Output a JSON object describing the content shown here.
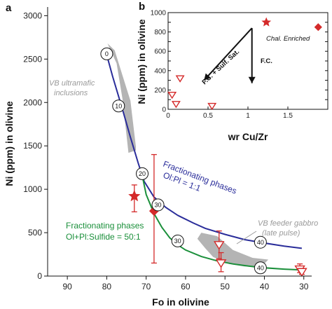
{
  "chart_data": [
    {
      "panel_label": "a",
      "type": "line",
      "xlabel": "Fo in olivine",
      "ylabel": "Ni (ppm) in olivine",
      "xlim": [
        95,
        28
      ],
      "ylim": [
        0,
        3100
      ],
      "x_ticks": [
        "90",
        "80",
        "70",
        "60",
        "50",
        "40",
        "30"
      ],
      "x_tick_values": [
        90,
        80,
        70,
        60,
        50,
        40,
        30
      ],
      "y_ticks": [
        "0",
        "500",
        "1000",
        "1500",
        "2000",
        "2500",
        "3000"
      ],
      "y_tick_values": [
        0,
        500,
        1000,
        1500,
        2000,
        2500,
        3000
      ],
      "series": [
        {
          "name": "Fractionating phases Ol:Pl = 1:1",
          "color": "#2a2d9a",
          "x": [
            80.2,
            78.5,
            76,
            74,
            72,
            70.5,
            68,
            65,
            62,
            58,
            55,
            50,
            45,
            40,
            35,
            30.5
          ],
          "y": [
            2580,
            2300,
            1920,
            1600,
            1300,
            1090,
            910,
            790,
            700,
            610,
            550,
            480,
            420,
            380,
            345,
            320
          ]
        },
        {
          "name": "Fractionating phases Ol+Pl:Sulfide = 50:1",
          "color": "#1a8f3a",
          "x": [
            71,
            70,
            68,
            66,
            64,
            62,
            60,
            56,
            52,
            48,
            44,
            40,
            35,
            30.5
          ],
          "y": [
            1160,
            940,
            720,
            560,
            440,
            360,
            300,
            225,
            175,
            140,
            115,
            95,
            80,
            70
          ]
        }
      ],
      "curve_markers": [
        {
          "label": "0",
          "x": 80,
          "y": 2560
        },
        {
          "label": "10",
          "x": 77,
          "y": 1960
        },
        {
          "label": "20",
          "x": 71,
          "y": 1180
        },
        {
          "label": "30",
          "x": 67,
          "y": 820
        },
        {
          "label": "30",
          "x": 62,
          "y": 405
        },
        {
          "label": "40",
          "x": 41,
          "y": 390
        },
        {
          "label": "40",
          "x": 41,
          "y": 95
        }
      ],
      "points": [
        {
          "marker": "star",
          "color": "#d42a2a",
          "x": 73,
          "y": 920,
          "yerr": [
            180,
            130
          ]
        },
        {
          "marker": "diamond",
          "color": "#d42a2a",
          "x": 68,
          "y": 750,
          "yerr": [
            600,
            650
          ]
        },
        {
          "marker": "triangle-down",
          "color": "#d42a2a",
          "x": 51.5,
          "y": 360,
          "yerr": [
            160,
            160
          ]
        },
        {
          "marker": "triangle-down",
          "color": "#d42a2a",
          "x": 51,
          "y": 150,
          "yerr": [
            100,
            120
          ]
        },
        {
          "marker": "triangle-down",
          "color": "#d42a2a",
          "x": 31,
          "y": 80,
          "yerr": [
            40,
            60
          ]
        },
        {
          "marker": "triangle-down",
          "color": "#d42a2a",
          "x": 30.5,
          "y": 50,
          "yerr": [
            30,
            30
          ]
        }
      ],
      "regions": [
        {
          "label": "VB ultramafic inclusions",
          "color": "#b4b4b4",
          "polygon": [
            [
              79.8,
              2680
            ],
            [
              78,
              2600
            ],
            [
              74,
              2020
            ],
            [
              72.5,
              1450
            ],
            [
              74.5,
              1420
            ],
            [
              76,
              2040
            ],
            [
              77.5,
              2450
            ],
            [
              79.2,
              2620
            ]
          ]
        },
        {
          "label": "VB feeder gabbro (late pulse)",
          "color": "#b4b4b4",
          "polygon": [
            [
              56,
              500
            ],
            [
              52,
              460
            ],
            [
              48,
              300
            ],
            [
              43,
              210
            ],
            [
              39,
              190
            ],
            [
              40.5,
              120
            ],
            [
              45,
              110
            ],
            [
              49,
              140
            ],
            [
              53,
              220
            ],
            [
              55,
              320
            ],
            [
              57,
              430
            ]
          ]
        }
      ],
      "annotations": {
        "ultramafic": [
          "VB ultramafic",
          "inclusions"
        ],
        "blue_curve": [
          "Fractionating phases",
          "Ol:Pl = 1:1"
        ],
        "green_curve": [
          "Fractionating phases",
          "Ol+Pl:Sulfide = 50:1"
        ],
        "gabbro": [
          "VB feeder gabbro",
          "(late pulse)"
        ]
      }
    },
    {
      "panel_label": "b",
      "type": "scatter",
      "xlabel": "wr Cu/Zr",
      "ylabel": "Ni (ppm) in olivine",
      "xlim": [
        0,
        2
      ],
      "ylim": [
        0,
        1000
      ],
      "x_ticks": [
        "0",
        "0.5",
        "1",
        "1.5"
      ],
      "x_tick_values": [
        0,
        0.5,
        1,
        1.5
      ],
      "y_ticks": [
        "0",
        "100",
        "200",
        "300",
        "400",
        "500",
        "600",
        "700",
        "800",
        "900",
        "1000"
      ],
      "y_tick_values": [
        0,
        100,
        200,
        300,
        400,
        500,
        600,
        700,
        800,
        900,
        1000
      ],
      "points": [
        {
          "marker": "star",
          "color": "#d42a2a",
          "x": 1.23,
          "y": 900
        },
        {
          "marker": "diamond",
          "color": "#d42a2a",
          "x": 1.88,
          "y": 850
        },
        {
          "marker": "triangle-down",
          "color": "#d42a2a",
          "x": 0.15,
          "y": 320
        },
        {
          "marker": "triangle-down",
          "color": "#d42a2a",
          "x": 0.05,
          "y": 150
        },
        {
          "marker": "triangle-down",
          "color": "#d42a2a",
          "x": 0.1,
          "y": 55
        },
        {
          "marker": "triangle-down",
          "color": "#d42a2a",
          "x": 0.55,
          "y": 35
        }
      ],
      "arrows": [
        {
          "label": "F.C. + Sulf. Sat.",
          "from": [
            1.05,
            840
          ],
          "to": [
            0.45,
            300
          ]
        },
        {
          "label": "F.C.",
          "from": [
            1.05,
            840
          ],
          "to": [
            1.05,
            270
          ]
        }
      ],
      "annotations": {
        "enriched": "Chal. Enriched"
      }
    }
  ]
}
